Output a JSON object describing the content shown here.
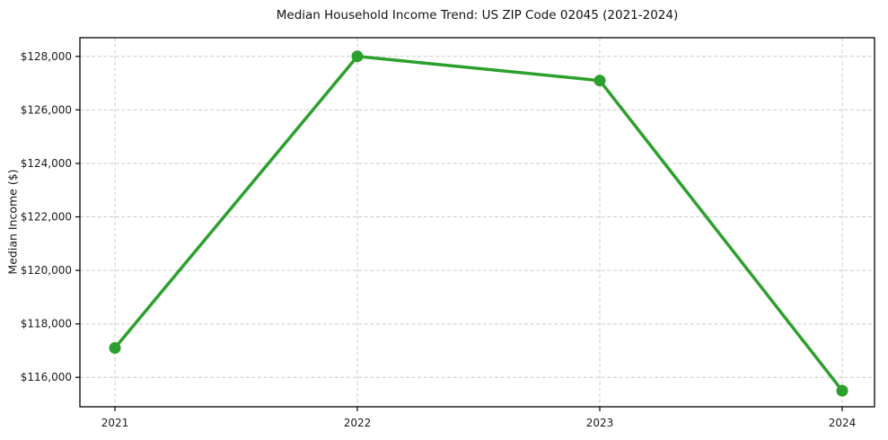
{
  "figure": {
    "background_color": "#ffffff"
  },
  "chart_data": {
    "type": "line",
    "title": "Median Household Income Trend: US ZIP Code 02045 (2021-2024)",
    "xlabel": "",
    "ylabel": "Median Income ($)",
    "categories": [
      "2021",
      "2022",
      "2023",
      "2024"
    ],
    "series": [
      {
        "name": "Median Household Income",
        "values": [
          117100,
          128000,
          127100,
          115500
        ]
      }
    ],
    "ylim": [
      114900,
      128700
    ],
    "yticks": [
      116000,
      118000,
      120000,
      122000,
      124000,
      126000,
      128000
    ],
    "ytick_labels": [
      "$116,000",
      "$118,000",
      "$120,000",
      "$122,000",
      "$124,000",
      "$126,000",
      "$128,000"
    ],
    "xtick_labels": [
      "2021",
      "2022",
      "2023",
      "2024"
    ],
    "grid": true,
    "grid_style": "dashed",
    "grid_color": "#cccccc",
    "legend": "none",
    "line_color": "#2ca02c",
    "marker": "circle",
    "marker_color": "#2ca02c"
  }
}
